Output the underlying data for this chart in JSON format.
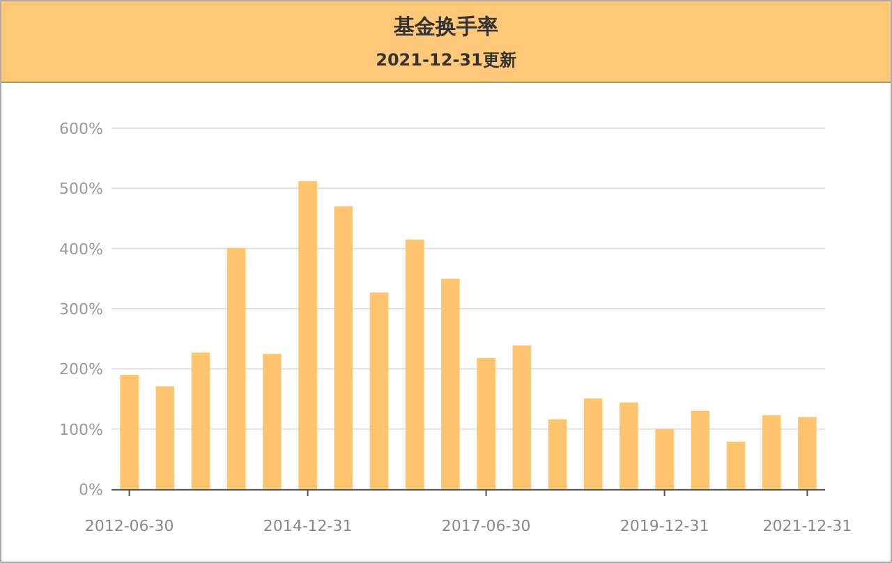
{
  "chart_data": {
    "type": "bar",
    "title": "基金换手率",
    "subtitle": "2021-12-31更新",
    "categories": [
      "2012-06-30",
      null,
      null,
      null,
      null,
      "2014-12-31",
      null,
      null,
      null,
      null,
      "2017-06-30",
      null,
      null,
      null,
      null,
      "2019-12-31",
      null,
      null,
      null,
      "2021-12-31"
    ],
    "values": [
      190,
      171,
      227,
      401,
      225,
      512,
      470,
      327,
      415,
      350,
      218,
      239,
      116,
      151,
      144,
      100,
      130,
      79,
      123,
      120
    ],
    "color": "#ffc56e",
    "ylim": [
      0,
      600
    ],
    "yticks": [
      {
        "value": 0,
        "label": "0%"
      },
      {
        "value": 100,
        "label": "100%"
      },
      {
        "value": 200,
        "label": "200%"
      },
      {
        "value": 300,
        "label": "300%"
      },
      {
        "value": 400,
        "label": "400%"
      },
      {
        "value": 500,
        "label": "500%"
      },
      {
        "value": 600,
        "label": "600%"
      }
    ],
    "grid": "y"
  }
}
